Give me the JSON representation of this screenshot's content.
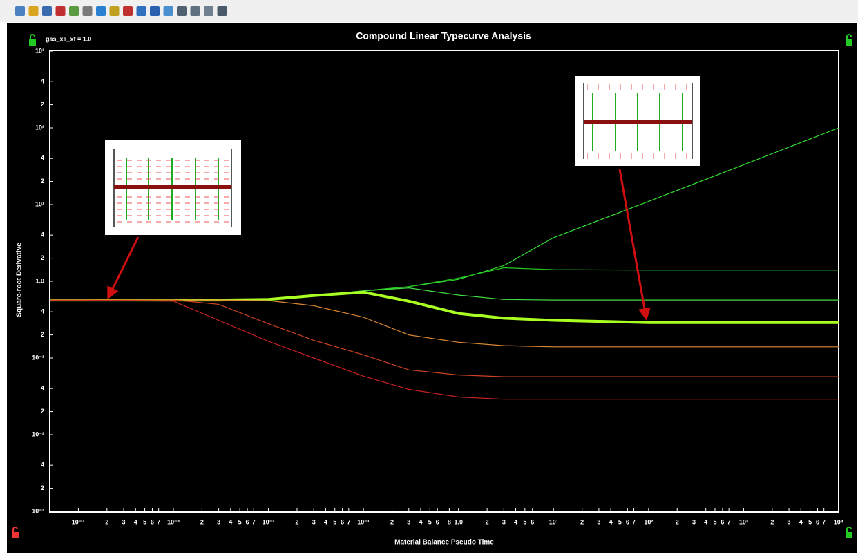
{
  "chart_data": {
    "type": "line",
    "title": "Compound Linear Typecurve Analysis",
    "annotation": "gas_xs_xf = 1.0",
    "xlabel": "Material Balance Pseudo Time",
    "ylabel": "Square-root Derivative",
    "xscale": "log",
    "yscale": "log",
    "xlim": [
      5e-05,
      10000
    ],
    "ylim": [
      0.001,
      1000
    ],
    "xticks": [
      {
        "value": 0.0001,
        "label": "10⁻⁴"
      },
      {
        "value": 0.0002,
        "label": "2"
      },
      {
        "value": 0.0003,
        "label": "3"
      },
      {
        "value": 0.0004,
        "label": "4"
      },
      {
        "value": 0.0005,
        "label": "5"
      },
      {
        "value": 0.0006,
        "label": "6"
      },
      {
        "value": 0.0007,
        "label": "7"
      },
      {
        "value": 0.001,
        "label": "10⁻³"
      },
      {
        "value": 0.002,
        "label": "2"
      },
      {
        "value": 0.003,
        "label": "3"
      },
      {
        "value": 0.004,
        "label": "4"
      },
      {
        "value": 0.005,
        "label": "5"
      },
      {
        "value": 0.006,
        "label": "6"
      },
      {
        "value": 0.007,
        "label": "7"
      },
      {
        "value": 0.01,
        "label": "10⁻²"
      },
      {
        "value": 0.02,
        "label": "2"
      },
      {
        "value": 0.03,
        "label": "3"
      },
      {
        "value": 0.04,
        "label": "4"
      },
      {
        "value": 0.05,
        "label": "5"
      },
      {
        "value": 0.06,
        "label": "6"
      },
      {
        "value": 0.07,
        "label": "7"
      },
      {
        "value": 0.1,
        "label": "10⁻¹"
      },
      {
        "value": 0.2,
        "label": "2"
      },
      {
        "value": 0.3,
        "label": "3"
      },
      {
        "value": 0.4,
        "label": "4"
      },
      {
        "value": 0.5,
        "label": "5"
      },
      {
        "value": 0.6,
        "label": "6"
      },
      {
        "value": 0.8,
        "label": "8"
      },
      {
        "value": 1,
        "label": "1.0"
      },
      {
        "value": 2,
        "label": "2"
      },
      {
        "value": 3,
        "label": "3"
      },
      {
        "value": 4,
        "label": "4"
      },
      {
        "value": 5,
        "label": "5"
      },
      {
        "value": 6,
        "label": "6"
      },
      {
        "value": 10,
        "label": "10¹"
      },
      {
        "value": 20,
        "label": "2"
      },
      {
        "value": 30,
        "label": "3"
      },
      {
        "value": 40,
        "label": "4"
      },
      {
        "value": 50,
        "label": "5"
      },
      {
        "value": 60,
        "label": "6"
      },
      {
        "value": 70,
        "label": "7"
      },
      {
        "value": 100,
        "label": "10²"
      },
      {
        "value": 200,
        "label": "2"
      },
      {
        "value": 300,
        "label": "3"
      },
      {
        "value": 400,
        "label": "4"
      },
      {
        "value": 500,
        "label": "5"
      },
      {
        "value": 600,
        "label": "6"
      },
      {
        "value": 700,
        "label": "7"
      },
      {
        "value": 1000,
        "label": "10³"
      },
      {
        "value": 2000,
        "label": "2"
      },
      {
        "value": 3000,
        "label": "3"
      },
      {
        "value": 4000,
        "label": "4"
      },
      {
        "value": 5000,
        "label": "5"
      },
      {
        "value": 6000,
        "label": "6"
      },
      {
        "value": 7000,
        "label": "7"
      },
      {
        "value": 10000,
        "label": "10⁴"
      }
    ],
    "yticks": [
      {
        "value": 0.001,
        "label": "10⁻³"
      },
      {
        "value": 0.002,
        "label": "2"
      },
      {
        "value": 0.004,
        "label": "4"
      },
      {
        "value": 0.01,
        "label": "10⁻²"
      },
      {
        "value": 0.02,
        "label": "2"
      },
      {
        "value": 0.04,
        "label": "4"
      },
      {
        "value": 0.1,
        "label": "10⁻¹"
      },
      {
        "value": 0.2,
        "label": "2"
      },
      {
        "value": 0.4,
        "label": "4"
      },
      {
        "value": 1,
        "label": "1.0"
      },
      2,
      4,
      {
        "value": 10,
        "label": "10¹"
      },
      {
        "value": 20,
        "label": "2"
      },
      {
        "value": 40,
        "label": "4"
      },
      {
        "value": 100,
        "label": "10²"
      },
      {
        "value": 200,
        "label": "2"
      },
      {
        "value": 400,
        "label": "4"
      },
      {
        "value": 1000,
        "label": "10³"
      }
    ],
    "x": [
      5e-05,
      0.0001,
      0.001,
      0.003,
      0.01,
      0.03,
      0.1,
      0.3,
      1,
      3,
      10,
      100,
      1000,
      10000
    ],
    "series": [
      {
        "color": "#33dd33",
        "linewidth": 1.2,
        "values": [
          0.57,
          0.57,
          0.57,
          0.57,
          0.58,
          0.65,
          0.75,
          0.85,
          1.06,
          1.6,
          3.7,
          11,
          33,
          100
        ]
      },
      {
        "color": "#22c822",
        "linewidth": 1.2,
        "values": [
          0.57,
          0.57,
          0.57,
          0.57,
          0.58,
          0.65,
          0.75,
          0.85,
          1.1,
          1.5,
          1.42,
          1.4,
          1.4,
          1.4
        ]
      },
      {
        "color": "#44dd44",
        "linewidth": 1.2,
        "values": [
          0.57,
          0.57,
          0.57,
          0.57,
          0.58,
          0.65,
          0.75,
          0.82,
          0.66,
          0.58,
          0.57,
          0.57,
          0.57,
          0.57
        ]
      },
      {
        "color": "#aaff22",
        "linewidth": 4,
        "values": [
          0.57,
          0.57,
          0.57,
          0.57,
          0.58,
          0.65,
          0.72,
          0.55,
          0.38,
          0.33,
          0.31,
          0.29,
          0.29,
          0.29
        ]
      },
      {
        "color": "#dd8833",
        "linewidth": 1.2,
        "values": [
          0.57,
          0.57,
          0.57,
          0.57,
          0.56,
          0.48,
          0.34,
          0.2,
          0.16,
          0.145,
          0.14,
          0.14,
          0.14,
          0.14
        ]
      },
      {
        "color": "#cc4422",
        "linewidth": 1.2,
        "values": [
          0.57,
          0.57,
          0.57,
          0.5,
          0.28,
          0.17,
          0.11,
          0.07,
          0.06,
          0.057,
          0.057,
          0.057,
          0.057,
          0.057
        ]
      },
      {
        "color": "#cc2222",
        "linewidth": 1.2,
        "values": [
          0.57,
          0.57,
          0.55,
          0.31,
          0.165,
          0.1,
          0.058,
          0.039,
          0.031,
          0.029,
          0.029,
          0.029,
          0.029,
          0.029
        ]
      }
    ]
  }
}
